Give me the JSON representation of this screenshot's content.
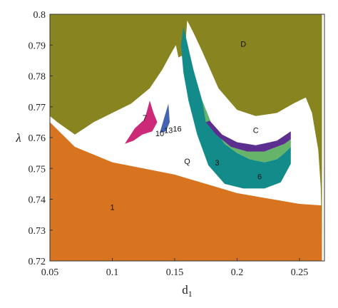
{
  "chart_data": {
    "type": "heatmap",
    "title": "",
    "xlabel": "d",
    "xlabel_subscript": "1",
    "ylabel": "λ",
    "xlim": [
      0.05,
      0.27
    ],
    "ylim": [
      0.72,
      0.8
    ],
    "x_ticks": [
      "0.05",
      "0.1",
      "0.15",
      "0.2",
      "0.25"
    ],
    "x_tick_values": [
      0.05,
      0.1,
      0.15,
      0.2,
      0.25
    ],
    "y_ticks": [
      "0.8",
      "0.79",
      "0.78",
      "0.77",
      "0.76",
      "0.75",
      "0.74",
      "0.73",
      "0.72"
    ],
    "y_tick_values": [
      0.8,
      0.79,
      0.78,
      0.77,
      0.76,
      0.75,
      0.74,
      0.73,
      0.72
    ],
    "colors": {
      "region_1": "#d8741f",
      "region_D": "#888520",
      "region_3": "#138b8b",
      "region_6": "#66b36a",
      "violet": "#5b2e8f",
      "magenta": "#cc2a78",
      "blue": "#4463b0",
      "background": "#ffffff",
      "frame": "#333333"
    },
    "regions": [
      {
        "label": "1",
        "color": "#d8741f",
        "boundary": [
          [
            0.05,
            0.72
          ],
          [
            0.05,
            0.765
          ],
          [
            0.07,
            0.757
          ],
          [
            0.1,
            0.752
          ],
          [
            0.15,
            0.748
          ],
          [
            0.2,
            0.742
          ],
          [
            0.25,
            0.7385
          ],
          [
            0.268,
            0.738
          ],
          [
            0.268,
            0.72
          ]
        ]
      },
      {
        "label": "D",
        "color": "#888520",
        "boundary": [
          [
            0.05,
            0.8
          ],
          [
            0.05,
            0.767
          ],
          [
            0.056,
            0.765
          ],
          [
            0.07,
            0.761
          ],
          [
            0.085,
            0.765
          ],
          [
            0.1,
            0.768
          ],
          [
            0.115,
            0.771
          ],
          [
            0.13,
            0.776
          ],
          [
            0.14,
            0.782
          ],
          [
            0.148,
            0.788
          ],
          [
            0.151,
            0.79
          ],
          [
            0.153,
            0.786
          ],
          [
            0.158,
            0.787
          ],
          [
            0.16,
            0.798
          ],
          [
            0.165,
            0.794
          ],
          [
            0.172,
            0.788
          ],
          [
            0.185,
            0.776
          ],
          [
            0.2,
            0.769
          ],
          [
            0.215,
            0.767
          ],
          [
            0.232,
            0.768
          ],
          [
            0.245,
            0.771
          ],
          [
            0.255,
            0.773
          ],
          [
            0.26,
            0.768
          ],
          [
            0.265,
            0.756
          ],
          [
            0.267,
            0.744
          ],
          [
            0.268,
            0.726
          ],
          [
            0.268,
            0.8
          ]
        ]
      },
      {
        "label": "3",
        "color": "#138b8b",
        "boundary": [
          [
            0.157,
            0.796
          ],
          [
            0.165,
            0.782
          ],
          [
            0.172,
            0.772
          ],
          [
            0.18,
            0.764
          ],
          [
            0.19,
            0.758
          ],
          [
            0.2,
            0.755
          ],
          [
            0.21,
            0.753
          ],
          [
            0.222,
            0.752
          ],
          [
            0.232,
            0.753
          ],
          [
            0.238,
            0.755
          ],
          [
            0.243,
            0.757
          ],
          [
            0.243,
            0.7515
          ],
          [
            0.235,
            0.7455
          ],
          [
            0.222,
            0.7435
          ],
          [
            0.205,
            0.7435
          ],
          [
            0.19,
            0.745
          ],
          [
            0.177,
            0.751
          ],
          [
            0.168,
            0.761
          ],
          [
            0.161,
            0.772
          ],
          [
            0.157,
            0.781
          ],
          [
            0.155,
            0.79
          ]
        ]
      },
      {
        "label": "6",
        "color": "#66b36a",
        "boundary": [
          [
            0.175,
            0.765
          ],
          [
            0.183,
            0.761
          ],
          [
            0.195,
            0.757
          ],
          [
            0.208,
            0.7555
          ],
          [
            0.222,
            0.7555
          ],
          [
            0.238,
            0.758
          ],
          [
            0.243,
            0.7595
          ],
          [
            0.243,
            0.757
          ],
          [
            0.238,
            0.755
          ],
          [
            0.232,
            0.753
          ],
          [
            0.222,
            0.752
          ],
          [
            0.21,
            0.753
          ],
          [
            0.2,
            0.755
          ],
          [
            0.19,
            0.758
          ],
          [
            0.18,
            0.764
          ],
          [
            0.172,
            0.772
          ]
        ]
      },
      {
        "label": "violet",
        "color": "#5b2e8f",
        "boundary": [
          [
            0.178,
            0.7655
          ],
          [
            0.188,
            0.761
          ],
          [
            0.2,
            0.7585
          ],
          [
            0.215,
            0.7575
          ],
          [
            0.232,
            0.759
          ],
          [
            0.243,
            0.762
          ],
          [
            0.243,
            0.7595
          ],
          [
            0.238,
            0.758
          ],
          [
            0.222,
            0.7555
          ],
          [
            0.208,
            0.7555
          ],
          [
            0.195,
            0.757
          ],
          [
            0.183,
            0.761
          ],
          [
            0.175,
            0.765
          ]
        ]
      },
      {
        "label": "7",
        "color": "#cc2a78",
        "boundary": [
          [
            0.11,
            0.758
          ],
          [
            0.118,
            0.763
          ],
          [
            0.126,
            0.766
          ],
          [
            0.13,
            0.772
          ],
          [
            0.133,
            0.768
          ],
          [
            0.136,
            0.765
          ],
          [
            0.132,
            0.762
          ],
          [
            0.124,
            0.761
          ],
          [
            0.117,
            0.759
          ]
        ]
      },
      {
        "label": "10",
        "color": "#4463b0",
        "boundary": [
          [
            0.138,
            0.7615
          ],
          [
            0.142,
            0.767
          ],
          [
            0.145,
            0.771
          ],
          [
            0.146,
            0.765
          ],
          [
            0.143,
            0.762
          ]
        ]
      }
    ],
    "annotations": [
      {
        "text": "D",
        "x": 0.205,
        "y": 0.7895
      },
      {
        "text": "C",
        "x": 0.215,
        "y": 0.7615
      },
      {
        "text": "Q",
        "x": 0.16,
        "y": 0.7515
      },
      {
        "text": "3",
        "x": 0.184,
        "y": 0.751
      },
      {
        "text": "6",
        "x": 0.218,
        "y": 0.7465
      },
      {
        "text": "7",
        "x": 0.126,
        "y": 0.7655
      },
      {
        "text": "10",
        "x": 0.138,
        "y": 0.7605
      },
      {
        "text": "13",
        "x": 0.145,
        "y": 0.7615
      },
      {
        "text": "16",
        "x": 0.152,
        "y": 0.762
      },
      {
        "text": "1",
        "x": 0.1,
        "y": 0.7365
      }
    ]
  }
}
